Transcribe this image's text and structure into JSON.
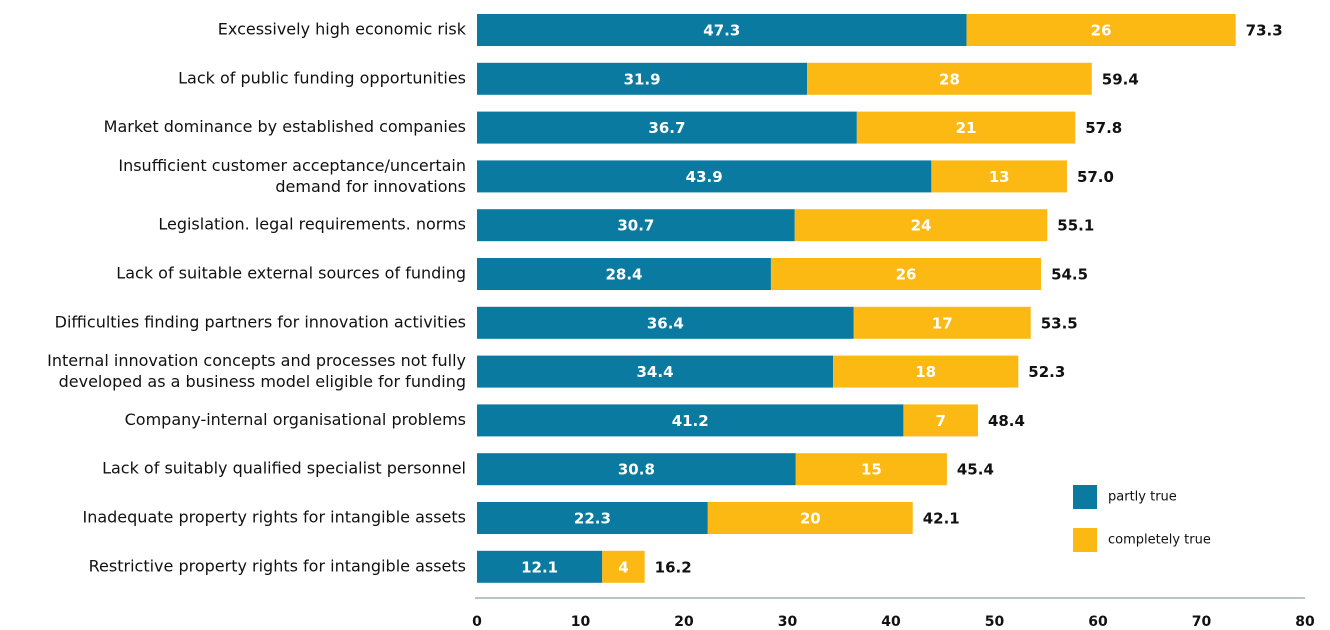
{
  "chart_data": {
    "type": "stacked-barh",
    "categories": [
      "Excessively high economic risk",
      "Lack of public funding opportunities",
      "Market dominance by established companies",
      "Insufficient customer acceptance/uncertain\ndemand for innovations",
      "Legislation. legal requirements. norms",
      "Lack of suitable external sources of funding",
      "Difficulties finding partners for innovation activities ",
      "Internal innovation concepts and processes not fully\ndeveloped as a business model eligible for funding",
      "Company-internal organisational problems",
      "Lack of suitably qualified specialist personnel",
      "Inadequate property rights for intangible assets",
      "Restrictive property rights for intangible assets"
    ],
    "series": [
      {
        "name": "partly true",
        "color": "#0b7aa0",
        "values": [
          47.3,
          31.9,
          36.7,
          43.9,
          30.7,
          28.4,
          36.4,
          34.4,
          41.2,
          30.8,
          22.3,
          12.1
        ]
      },
      {
        "name": "completely true",
        "color": "#fdb913",
        "values": [
          26,
          27.5,
          21.1,
          13.1,
          24.4,
          26.1,
          17.1,
          17.9,
          7.2,
          14.6,
          19.8,
          4.1
        ],
        "value_labels": [
          "26",
          "28",
          "21",
          "13",
          "24",
          "26",
          "17",
          "18",
          "7",
          "15",
          "20",
          "4"
        ]
      }
    ],
    "totals": [
      73.3,
      59.4,
      57.8,
      57.0,
      55.1,
      54.5,
      53.5,
      52.3,
      48.4,
      45.4,
      42.1,
      16.2
    ],
    "total_labels": [
      "73.3",
      "59.4",
      "57.8",
      "57.0",
      "55.1",
      "54.5",
      "53.5",
      "52.3",
      "48.4",
      "45.4",
      "42.1",
      "16.2"
    ],
    "xlim": [
      0,
      80
    ],
    "xticks": [
      0,
      10,
      20,
      30,
      40,
      50,
      60,
      70,
      80
    ],
    "legend": "lower right"
  }
}
